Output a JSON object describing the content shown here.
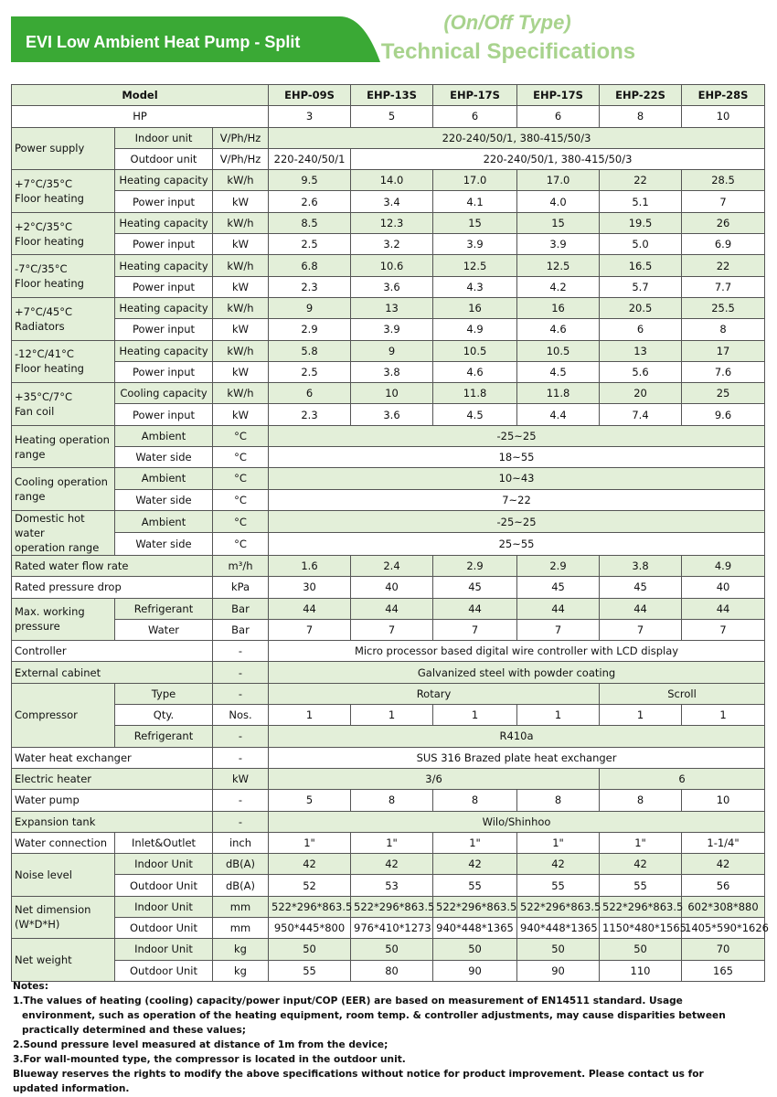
{
  "header": {
    "title": "EVI Low Ambient Heat Pump - Split",
    "type": "(On/Off Type)",
    "subtitle": "Technical Specifications"
  },
  "table": {
    "rows": [
      [
        "Model",
        "EHP-09S",
        "EHP-13S",
        "EHP-17S",
        "EHP-17S",
        "EHP-22S",
        "EHP-28S"
      ],
      [
        "HP",
        "3",
        "5",
        "6",
        "6",
        "8",
        "10"
      ],
      [
        "Power supply",
        "Indoor unit",
        "V/Ph/Hz",
        "220-240/50/1, 380-415/50/3"
      ],
      [
        "Outdoor unit",
        "V/Ph/Hz",
        "220-240/50/1",
        "220-240/50/1, 380-415/50/3"
      ],
      [
        "+7°C/35°C\nFloor heating",
        "Heating capacity",
        "kW/h",
        "9.5",
        "14.0",
        "17.0",
        "17.0",
        "22",
        "28.5"
      ],
      [
        "Power input",
        "kW",
        "2.6",
        "3.4",
        "4.1",
        "4.0",
        "5.1",
        "7"
      ],
      [
        "+2°C/35°C\nFloor heating",
        "Heating capacity",
        "kW/h",
        "8.5",
        "12.3",
        "15",
        "15",
        "19.5",
        "26"
      ],
      [
        "Power input",
        "kW",
        "2.5",
        "3.2",
        "3.9",
        "3.9",
        "5.0",
        "6.9"
      ],
      [
        "-7°C/35°C\nFloor heating",
        "Heating capacity",
        "kW/h",
        "6.8",
        "10.6",
        "12.5",
        "12.5",
        "16.5",
        "22"
      ],
      [
        "Power input",
        "kW",
        "2.3",
        "3.6",
        "4.3",
        "4.2",
        "5.7",
        "7.7"
      ],
      [
        "+7°C/45°C\nRadiators",
        "Heating capacity",
        "kW/h",
        "9",
        "13",
        "16",
        "16",
        "20.5",
        "25.5"
      ],
      [
        "Power input",
        "kW",
        "2.9",
        "3.9",
        "4.9",
        "4.6",
        "6",
        "8"
      ],
      [
        " -12°C/41°C\nFloor heating",
        "Heating capacity",
        "kW/h",
        "5.8",
        "9",
        "10.5",
        "10.5",
        "13",
        "17"
      ],
      [
        "Power input",
        "kW",
        "2.5",
        "3.8",
        "4.6",
        "4.5",
        "5.6",
        "7.6"
      ],
      [
        "+35°C/7°C\nFan coil",
        "Cooling capacity",
        "kW/h",
        "6",
        "10",
        "11.8",
        "11.8",
        "20",
        "25"
      ],
      [
        "Power input",
        "kW",
        "2.3",
        "3.6",
        "4.5",
        "4.4",
        "7.4",
        "9.6"
      ],
      [
        "Heating operation range",
        "Ambient",
        "°C",
        "-25~25"
      ],
      [
        "Water side",
        "°C",
        "18~55"
      ],
      [
        "Cooling operation range",
        "Ambient",
        "°C",
        "10~43"
      ],
      [
        "Water side",
        "°C",
        "7~22"
      ],
      [
        "Domestic hot water\noperation range",
        "Ambient",
        "°C",
        "-25~25"
      ],
      [
        "Water side",
        "°C",
        "25~55"
      ],
      [
        "Rated water flow rate",
        "m³/h",
        "1.6",
        "2.4",
        "2.9",
        "2.9",
        "3.8",
        "4.9"
      ],
      [
        "Rated pressure drop",
        "kPa",
        "30",
        "40",
        "45",
        "45",
        "45",
        "40"
      ],
      [
        "Max. working\npressure",
        "Refrigerant",
        "Bar",
        "44",
        "44",
        "44",
        "44",
        "44",
        "44"
      ],
      [
        "Water",
        "Bar",
        "7",
        "7",
        "7",
        "7",
        "7",
        "7"
      ],
      [
        "Controller",
        "-",
        "Micro processor based digital wire controller with LCD display"
      ],
      [
        "External cabinet",
        "-",
        "Galvanized steel with powder coating"
      ],
      [
        "Compressor",
        "Type",
        "-",
        "Rotary",
        "Scroll"
      ],
      [
        "Qty.",
        "Nos.",
        "1",
        "1",
        "1",
        "1",
        "1",
        "1"
      ],
      [
        "Refrigerant",
        "-",
        "R410a"
      ],
      [
        "Water heat exchanger",
        "-",
        "SUS 316 Brazed plate heat exchanger"
      ],
      [
        "Electric heater",
        "kW",
        "3/6",
        "6"
      ],
      [
        "Water pump",
        "-",
        "5",
        "8",
        "8",
        "8",
        "8",
        "10"
      ],
      [
        "Expansion tank",
        "-",
        "Wilo/Shinhoo"
      ],
      [
        "Water connection",
        "Inlet&Outlet",
        "inch",
        "1\"",
        "1\"",
        "1\"",
        "1\"",
        "1\"",
        "1-1/4\""
      ],
      [
        "Noise level",
        "Indoor Unit",
        "dB(A)",
        "42",
        "42",
        "42",
        "42",
        "42",
        "42"
      ],
      [
        "Outdoor Unit",
        "dB(A)",
        "52",
        "53",
        "55",
        "55",
        "55",
        "56"
      ],
      [
        "Net dimension\n(W*D*H)",
        "Indoor Unit",
        "mm",
        "522*296*863.5",
        "522*296*863.5",
        "522*296*863.5",
        "522*296*863.5",
        "522*296*863.5",
        "602*308*880"
      ],
      [
        "Outdoor Unit",
        "mm",
        "950*445*800",
        "976*410*1273",
        "940*448*1365",
        "940*448*1365",
        "1150*480*1565",
        "1405*590*1626"
      ],
      [
        "Net weight",
        "Indoor Unit",
        "kg",
        "50",
        "50",
        "50",
        "50",
        "50",
        "70"
      ],
      [
        "Outdoor Unit",
        "kg",
        "55",
        "80",
        "90",
        "90",
        "110",
        "165"
      ]
    ]
  },
  "notes": {
    "title": "Notes:",
    "lines": [
      "1.The values of heating (cooling) capacity/power input/COP (EER) are based on measurement of EN14511 standard. Usage environment, such as operation of the heating equipment, room temp. & controller adjustments, may cause disparities between practically determined and these values;",
      "2.Sound pressure level measured at distance of 1m from the device;",
      "3.For wall-mounted type, the compressor is located in the outdoor unit.",
      "Blueway reserves the rights to modify the above specifications without notice for product improvement. Please contact us for updated information."
    ]
  }
}
